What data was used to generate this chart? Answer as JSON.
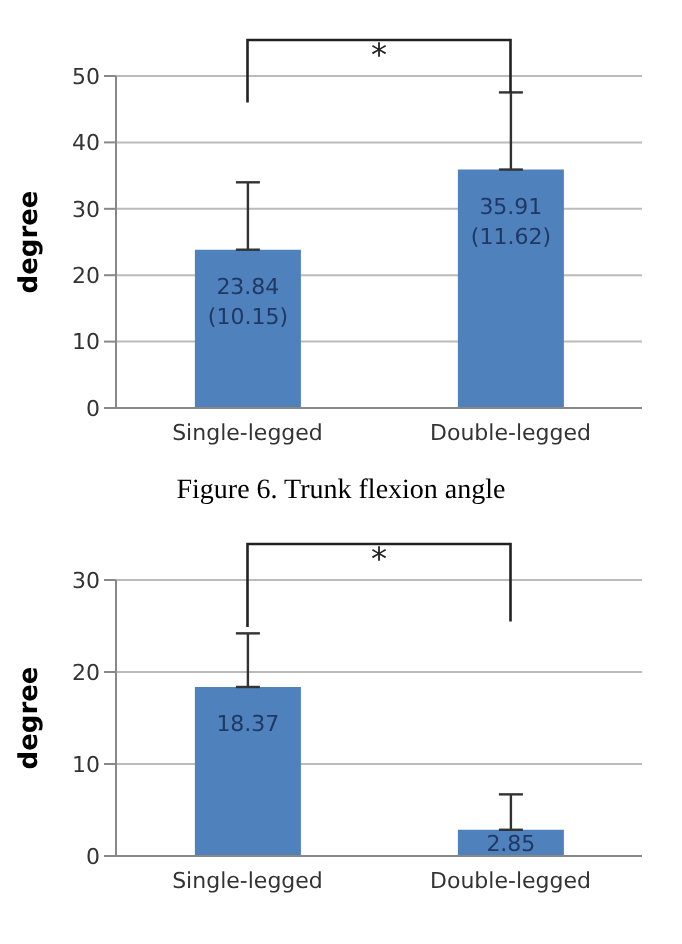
{
  "chart_data": [
    {
      "type": "bar",
      "title": "Figure 6. Trunk flexion angle",
      "ylabel": "degree",
      "categories": [
        "Single-legged",
        "Double-legged"
      ],
      "values": [
        23.84,
        35.91
      ],
      "color": "#4f81bd",
      "errors": [
        [
          23.84,
          33.99
        ],
        [
          35.91,
          47.53
        ]
      ],
      "value_labels": [
        "23.84 (10.15)",
        "35.91 (11.62)"
      ],
      "ylim": [
        0,
        50
      ],
      "yticks": [
        0,
        10,
        20,
        30,
        40,
        50
      ],
      "grid": "y",
      "annotations": [
        "*"
      ]
    },
    {
      "type": "bar",
      "ylabel": "degree",
      "categories": [
        "Single-legged",
        "Double-legged"
      ],
      "values": [
        18.37,
        2.85
      ],
      "color": "#4f81bd",
      "errors": [
        [
          18.37,
          24.2
        ],
        [
          2.85,
          6.7
        ]
      ],
      "data_labels": true,
      "ylim": [
        0,
        30
      ],
      "yticks": [
        0,
        10,
        20,
        30
      ],
      "grid": "y",
      "annotations": [
        "*"
      ]
    }
  ]
}
